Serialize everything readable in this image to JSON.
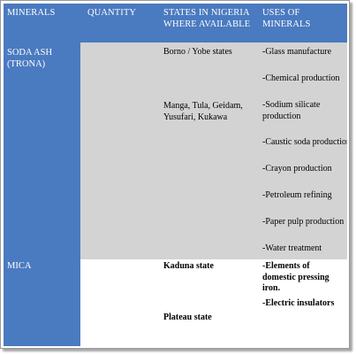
{
  "headers": {
    "minerals": "MINERALS",
    "quantity": "QUANTITY",
    "states": "STATES IN NIGERIA WHERE AVAILABLE",
    "uses": "USES OF MINERALS"
  },
  "rows": [
    {
      "mineral": "SODA ASH (TRONA)",
      "quantity": "",
      "states": [
        "Borno / Yobe states",
        "Manga, Tula, Geidam, Yusufari, Kukawa"
      ],
      "uses": [
        "-Glass manufacture",
        "-Chemical production",
        "-Sodium silicate production",
        "-Caustic soda production",
        "-Crayon production",
        "-Petroleum refining",
        "-Paper pulp production",
        "-Water treatment"
      ]
    },
    {
      "mineral": "MICA",
      "quantity": "",
      "states": [
        "Kaduna state",
        "Plateau state"
      ],
      "uses": [
        "-Elements of domestic pressing iron.",
        "-Electric insulators"
      ]
    }
  ],
  "colors": {
    "header_bg": "#4a7ac0",
    "grey_cell": "#d3d3d3",
    "header_text": "#ffffff"
  }
}
